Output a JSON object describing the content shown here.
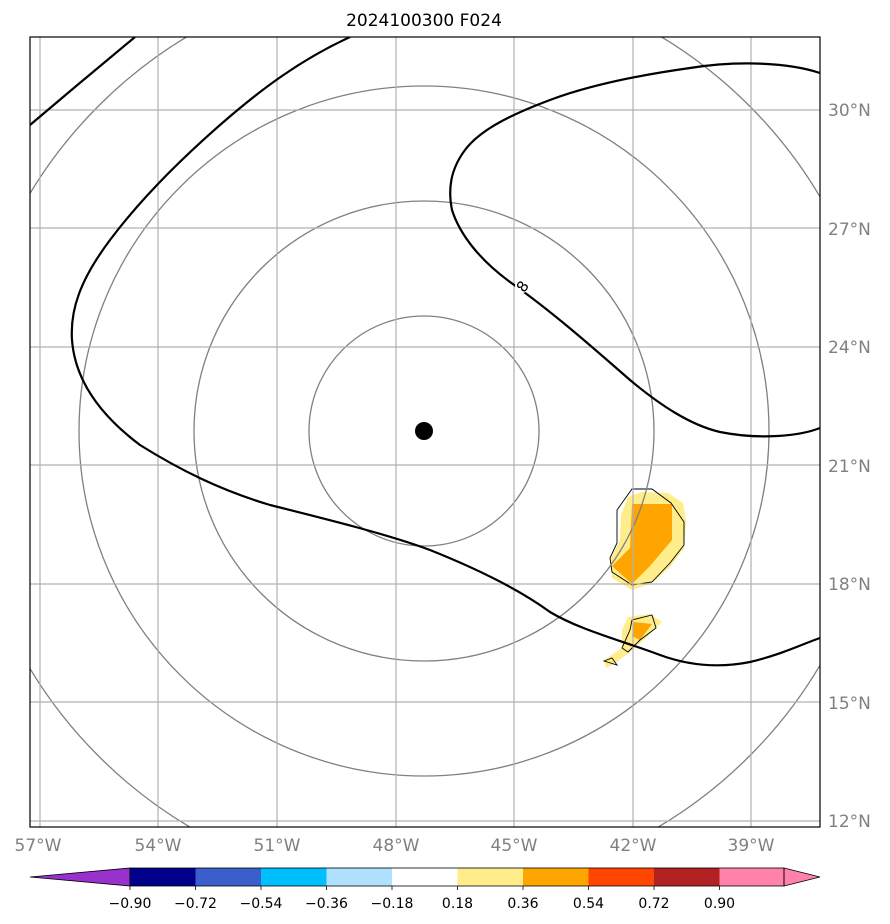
{
  "title": "2024100300 F024",
  "lat_labels": [
    "30°N",
    "27°N",
    "24°N",
    "21°N",
    "18°N",
    "15°N",
    "12°N"
  ],
  "lon_labels": [
    "57°W",
    "54°W",
    "51°W",
    "48°W",
    "45°W",
    "42°W",
    "39°W"
  ],
  "contour_label": "8",
  "colorbar": {
    "ticks": [
      "−0.90",
      "−0.72",
      "−0.54",
      "−0.36",
      "−0.18",
      "0.18",
      "0.36",
      "0.54",
      "0.72",
      "0.90"
    ],
    "colors": [
      "#9932cc",
      "#00008b",
      "#3a5fcd",
      "#00bfff",
      "#b0e2ff",
      "#ffffff",
      "#ffec8b",
      "#ffa500",
      "#ff4500",
      "#b22222",
      "#ff82ab"
    ]
  },
  "colors": {
    "range_ring": "#808080",
    "grid": "#b0b0b0",
    "contour": "#000000",
    "shade_light": "#ffec8b",
    "shade_dark": "#ffa500"
  }
}
